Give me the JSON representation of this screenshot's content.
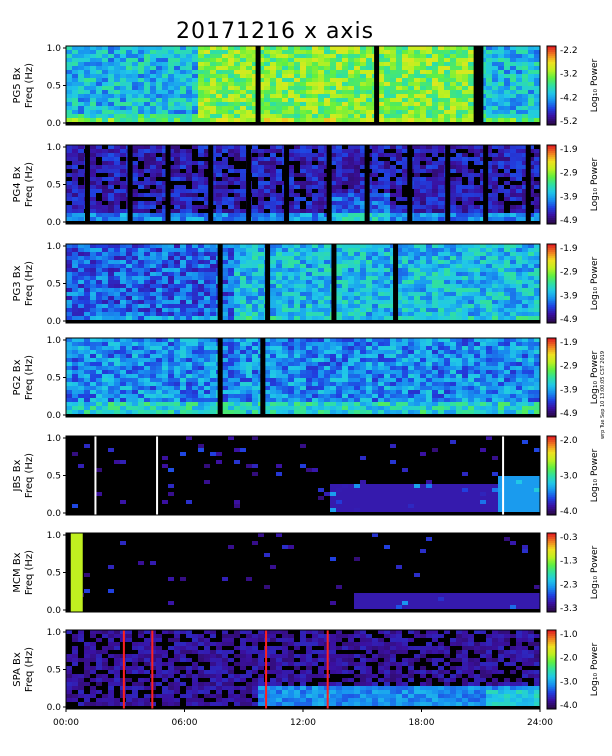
{
  "title": "20171216 x axis",
  "side_note": "wrp Tue Sep 10 13:00:05 CST 2019",
  "x_ticks": [
    "00:00",
    "06:00",
    "12:00",
    "18:00",
    "24:00"
  ],
  "colors": {
    "colormap": [
      "#2a0a4a",
      "#3a10a0",
      "#2040e0",
      "#1890f0",
      "#20c8e8",
      "#30e0a0",
      "#60f040",
      "#c0f020",
      "#f0e020",
      "#f08020",
      "#e02020"
    ]
  },
  "chart_data": {
    "type": "heatmap",
    "x_range_hours": [
      0,
      24
    ],
    "y_range_hz": [
      0,
      1
    ],
    "panels": [
      {
        "station": "PG5",
        "ylabel1": "PG5 Bx",
        "ylabel2": "Freq (Hz)",
        "yticks": [
          "1.0",
          "0.5",
          "0.0"
        ],
        "cbar_ticks": [
          "-2.2",
          "-3.2",
          "-4.2",
          "-5.2"
        ],
        "cbar_min": -5.2,
        "cbar_max": -2.2,
        "cbar_label": "Log₁₀ Power"
      },
      {
        "station": "PG4",
        "ylabel1": "PG4 Bx",
        "ylabel2": "Freq (Hz)",
        "yticks": [
          "1.0",
          "0.5",
          "0.0"
        ],
        "cbar_ticks": [
          "-1.9",
          "-2.9",
          "-3.9",
          "-4.9"
        ],
        "cbar_min": -4.9,
        "cbar_max": -1.9,
        "cbar_label": "Log₁₀ Power"
      },
      {
        "station": "PG3",
        "ylabel1": "PG3 Bx",
        "ylabel2": "Freq (Hz)",
        "yticks": [
          "1.0",
          "0.5",
          "0.0"
        ],
        "cbar_ticks": [
          "-1.9",
          "-2.9",
          "-3.9",
          "-4.9"
        ],
        "cbar_min": -4.9,
        "cbar_max": -1.9,
        "cbar_label": "Log₁₀ Power"
      },
      {
        "station": "PG2",
        "ylabel1": "PG2 Bx",
        "ylabel2": "Freq (Hz)",
        "yticks": [
          "1.0",
          "0.5",
          "0.0"
        ],
        "cbar_ticks": [
          "-1.9",
          "-2.9",
          "-3.9",
          "-4.9"
        ],
        "cbar_min": -4.9,
        "cbar_max": -1.9,
        "cbar_label": "Log₁₀ Power"
      },
      {
        "station": "JBS",
        "ylabel1": "JBS Bx",
        "ylabel2": "Freq (Hz)",
        "yticks": [
          "1.0",
          "0.5",
          "0.0"
        ],
        "cbar_ticks": [
          "-2.0",
          "-3.0",
          "-4.0"
        ],
        "cbar_min": -4.0,
        "cbar_max": -2.0,
        "cbar_label": "Log₁₀ Power"
      },
      {
        "station": "MCM",
        "ylabel1": "MCM Bx",
        "ylabel2": "Freq (Hz)",
        "yticks": [
          "1.0",
          "0.5",
          "0.0"
        ],
        "cbar_ticks": [
          "-0.3",
          "-1.3",
          "-2.3",
          "-3.3"
        ],
        "cbar_min": -3.3,
        "cbar_max": -0.3,
        "cbar_label": "Log₁₀ Power"
      },
      {
        "station": "SPA",
        "ylabel1": "SPA Bx",
        "ylabel2": "Freq (Hz)",
        "yticks": [
          "1.0",
          "0.5",
          "0.0"
        ],
        "cbar_ticks": [
          "-1.0",
          "-2.0",
          "-3.0",
          "-4.0"
        ],
        "cbar_min": -4.0,
        "cbar_max": -1.0,
        "cbar_label": "Log₁₀ Power"
      }
    ]
  }
}
